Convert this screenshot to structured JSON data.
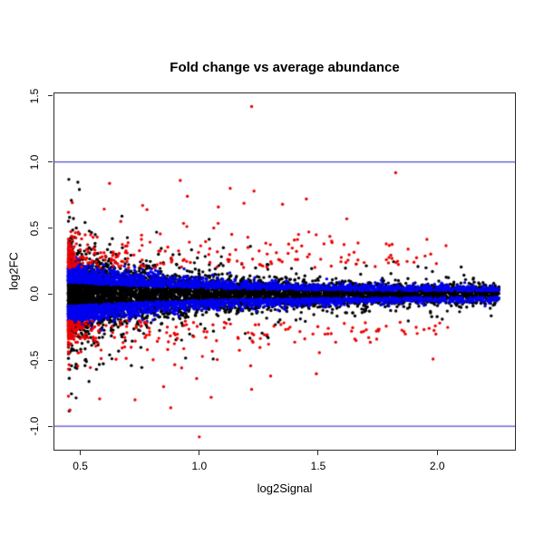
{
  "page": {
    "background": "#ffffff"
  },
  "chart_data": {
    "type": "scatter",
    "title": "Fold change vs average abundance",
    "xlabel": "log2Signal",
    "ylabel": "log2FC",
    "xlim": [
      0.391,
      2.327
    ],
    "ylim": [
      -1.177,
      1.519
    ],
    "x_ticks": [
      0.5,
      1.0,
      1.5,
      2.0
    ],
    "x_tick_labels": [
      "0.5",
      "1.0",
      "1.5",
      "2.0"
    ],
    "y_ticks": [
      -1.0,
      -0.5,
      0.0,
      0.5,
      1.0,
      1.5
    ],
    "y_tick_labels": [
      "-1.0",
      "-0.5",
      "0.0",
      "0.5",
      "1.0",
      "1.5"
    ],
    "grid": false,
    "legend": null,
    "frame_color": "#2b2b2b",
    "text_color": "#000000",
    "reference_lines": {
      "h": [
        -1.0,
        1.0
      ],
      "color": "#4A4AD8",
      "width": 1.2
    },
    "point_radius": 1.7,
    "point_colors": {
      "nonsignificant": "#000000",
      "moderate": "#0000EE",
      "significant": "#EE0000"
    },
    "data_x_range": [
      0.45,
      2.26
    ],
    "data_y_range": [
      -1.08,
      1.43
    ],
    "generator": {
      "seed": 1337,
      "x_min": 0.45,
      "sd_base": 0.03,
      "sd_amp": 0.1,
      "sd_decay": 1.8,
      "groups": [
        {
          "name": "nonsignificant",
          "color": "#000000",
          "n": 6500,
          "kind": "core",
          "x_span": 1.81,
          "x_pow": 2.0,
          "fringe_frac": 0.12,
          "fringe_mult": 2.3
        },
        {
          "name": "moderate",
          "color": "#0000EE",
          "n": 3800,
          "kind": "band",
          "x_span": 1.81,
          "x_pow": 2.0,
          "offset_rel": 0.7,
          "offset_abs": 0.0,
          "jitter_rel": 0.55,
          "jitter_abs": 0.0
        },
        {
          "name": "significant",
          "color": "#EE0000",
          "n": 520,
          "kind": "band",
          "x_span": 1.6,
          "x_pow": 3.0,
          "offset_rel": 1.3,
          "offset_abs": 0.2,
          "jitter_rel": 0.0,
          "jitter_abs": 0.12,
          "tail_frac": 0.06,
          "tail_abs": 0.25,
          "y_clamp": 0.95
        }
      ]
    },
    "outliers": {
      "significant": [
        [
          1.22,
          1.42
        ],
        [
          1.0,
          -1.08
        ],
        [
          0.92,
          0.86
        ],
        [
          1.13,
          0.8
        ],
        [
          1.23,
          0.78
        ],
        [
          0.95,
          0.74
        ],
        [
          1.45,
          0.72
        ],
        [
          1.35,
          0.68
        ],
        [
          1.08,
          0.66
        ],
        [
          0.78,
          0.64
        ],
        [
          1.62,
          0.57
        ],
        [
          0.67,
          0.55
        ],
        [
          1.81,
          0.27
        ],
        [
          1.64,
          -0.28
        ],
        [
          0.73,
          -0.8
        ],
        [
          0.88,
          -0.86
        ],
        [
          1.05,
          -0.78
        ],
        [
          1.22,
          -0.72
        ],
        [
          0.85,
          -0.7
        ],
        [
          1.3,
          -0.62
        ]
      ]
    }
  }
}
